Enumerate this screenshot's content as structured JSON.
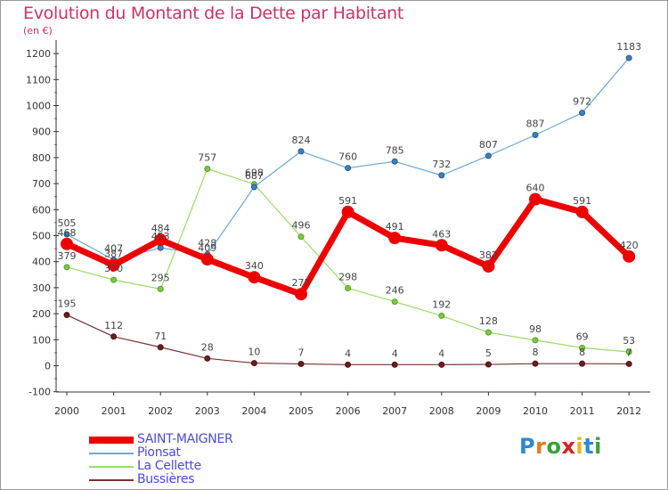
{
  "title": "Evolution du Montant de la Dette par Habitant",
  "unit_label": "(en €)",
  "logo_text": "Proxiti",
  "chart_data": {
    "type": "line",
    "title": "Evolution du Montant de la Dette par Habitant",
    "ylabel": "(en €)",
    "xlabel": "",
    "categories": [
      "2000",
      "2001",
      "2002",
      "2003",
      "2004",
      "2005",
      "2006",
      "2007",
      "2008",
      "2009",
      "2010",
      "2011",
      "2012"
    ],
    "ylim": [
      -100,
      1250
    ],
    "yticks": [
      -100,
      0,
      100,
      200,
      300,
      400,
      500,
      600,
      700,
      800,
      900,
      1000,
      1100,
      1200
    ],
    "grid": false,
    "legend_position": "bottom-left",
    "series": [
      {
        "name": "SAINT-MAIGNER",
        "color": "#ee0000",
        "values": [
          468,
          387,
          484,
          409,
          340,
          275,
          591,
          491,
          463,
          382,
          640,
          591,
          420
        ]
      },
      {
        "name": "Pionsat",
        "color": "#6fa8d6",
        "values": [
          505,
          407,
          453,
          428,
          687,
          824,
          760,
          785,
          732,
          807,
          887,
          972,
          1183
        ]
      },
      {
        "name": "La Cellette",
        "color": "#99dd66",
        "values": [
          379,
          330,
          295,
          757,
          698,
          496,
          298,
          246,
          192,
          128,
          98,
          69,
          53
        ]
      },
      {
        "name": "Bussières",
        "color": "#7a3333",
        "values": [
          195,
          112,
          71,
          28,
          10,
          7,
          4,
          4,
          4,
          5,
          8,
          8,
          7
        ]
      }
    ]
  }
}
